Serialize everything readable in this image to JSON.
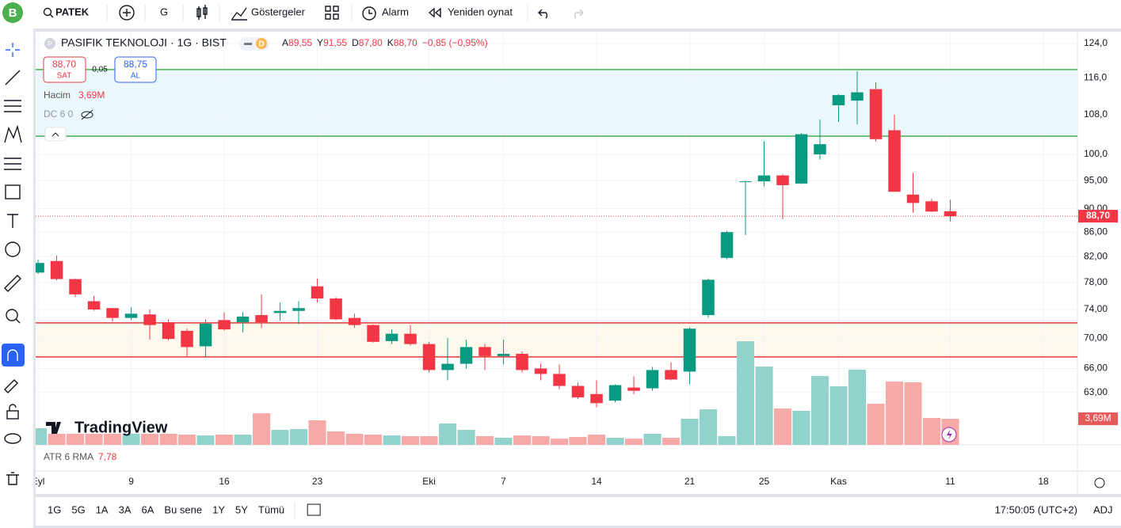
{
  "toolbar": {
    "avatar": "B",
    "symbol": "PATEK",
    "interval": "G",
    "indicators": "Göstergeler",
    "alarm": "Alarm",
    "replay": "Yeniden oynat"
  },
  "legend": {
    "logo": "P",
    "title": "PASIFIK TEKNOLOJI · 1G · BIST",
    "badge": "D",
    "ohlc": [
      {
        "key": "A",
        "value": "89,55"
      },
      {
        "key": "Y",
        "value": "91,55"
      },
      {
        "key": "D",
        "value": "87,80"
      },
      {
        "key": "K",
        "value": "88,70"
      }
    ],
    "change": "−0,85 (−0,95%)"
  },
  "trade": {
    "sell_price": "88,70",
    "sell": "SAT",
    "spread": "0,05",
    "buy_price": "88,75",
    "buy": "AL"
  },
  "indicators": [
    {
      "name": "Hacim",
      "value": "3,69M"
    },
    {
      "name": "DC 6 0"
    }
  ],
  "atr": {
    "name": "ATR 6 RMA",
    "value": "7,78"
  },
  "watermark": "TradingView",
  "ranges": [
    "1G",
    "5G",
    "1A",
    "3A",
    "6A",
    "Bu sene",
    "1Y",
    "5Y",
    "Tümü"
  ],
  "clock": "17:50:05 (UTC+2)",
  "adj": "ADJ",
  "chart_data": {
    "type": "candlestick",
    "log_scale": true,
    "grid": true,
    "xlim": [
      -0.13,
      55.83
    ],
    "ylim": [
      56.9,
      126.9
    ],
    "yticks": [
      {
        "value": 124,
        "label": "124,0"
      },
      {
        "value": 116,
        "label": "116,0"
      },
      {
        "value": 108,
        "label": "108,0"
      },
      {
        "value": 100,
        "label": "100,0"
      },
      {
        "value": 95,
        "label": "95,00"
      },
      {
        "value": 90,
        "label": "90,00"
      },
      {
        "value": 86,
        "label": "86,00"
      },
      {
        "value": 82,
        "label": "82,00"
      },
      {
        "value": 78,
        "label": "78,00"
      },
      {
        "value": 74,
        "label": "74,00"
      },
      {
        "value": 70,
        "label": "70,00"
      },
      {
        "value": 66,
        "label": "66,00"
      },
      {
        "value": 63,
        "label": "63,00"
      }
    ],
    "xticks": [
      {
        "value": 0,
        "label": "Eyl"
      },
      {
        "value": 5,
        "label": "9"
      },
      {
        "value": 10,
        "label": "16"
      },
      {
        "value": 15,
        "label": "23"
      },
      {
        "value": 21,
        "label": "Eki"
      },
      {
        "value": 25,
        "label": "7"
      },
      {
        "value": 30,
        "label": "14"
      },
      {
        "value": 35,
        "label": "21"
      },
      {
        "value": 39,
        "label": "25"
      },
      {
        "value": 43,
        "label": "Kas"
      },
      {
        "value": 49,
        "label": "11"
      },
      {
        "value": 54,
        "label": "18"
      }
    ],
    "series": {
      "up_color": "#089981",
      "down_color": "#f23645",
      "open": [
        79.5,
        81.3,
        78.5,
        75.2,
        74.2,
        72.8,
        73.3,
        72.2,
        71.0,
        68.9,
        72.5,
        72.2,
        73.2,
        73.5,
        73.8,
        77.4,
        75.6,
        72.8,
        71.8,
        69.6,
        70.6,
        69.2,
        65.8,
        66.6,
        68.8,
        67.6,
        67.9,
        66.0,
        65.3,
        63.8,
        62.8,
        62.0,
        63.6,
        63.5,
        65.8,
        65.6,
        73.2,
        81.8,
        94.8,
        94.9,
        96.0,
        94.5,
        100.0,
        110.0,
        111.0,
        113.5,
        104.8,
        92.5,
        91.3,
        89.55
      ],
      "high": [
        81.5,
        82.2,
        78.6,
        76.0,
        74.2,
        74.3,
        74.0,
        72.6,
        71.3,
        72.6,
        73.6,
        73.6,
        76.2,
        75.0,
        75.2,
        78.6,
        75.8,
        73.4,
        71.9,
        71.2,
        71.8,
        69.5,
        70.0,
        69.8,
        69.2,
        69.8,
        68.2,
        66.6,
        66.5,
        64.2,
        64.5,
        64.0,
        65.0,
        66.2,
        66.8,
        71.5,
        78.6,
        86.2,
        95.0,
        102.5,
        96.2,
        104.2,
        107.0,
        112.4,
        117.5,
        115.0,
        108.0,
        96.5,
        91.7,
        91.55
      ],
      "low": [
        79.3,
        78.3,
        75.8,
        73.8,
        72.3,
        72.5,
        69.8,
        69.7,
        67.5,
        67.5,
        71.0,
        70.8,
        71.4,
        72.4,
        71.9,
        75.0,
        72.5,
        71.4,
        69.4,
        69.2,
        69.0,
        65.5,
        64.5,
        66.0,
        65.8,
        66.5,
        65.5,
        64.5,
        63.4,
        62.2,
        61.2,
        61.8,
        62.8,
        63.2,
        64.5,
        64.0,
        72.8,
        81.6,
        85.5,
        94.0,
        88.2,
        94.4,
        99.0,
        106.5,
        106.0,
        102.5,
        93.0,
        89.3,
        89.4,
        87.8
      ],
      "close": [
        81.0,
        78.5,
        76.2,
        74.0,
        72.8,
        73.4,
        71.8,
        69.9,
        68.8,
        72.0,
        71.2,
        73.0,
        72.2,
        73.8,
        74.2,
        75.6,
        72.6,
        71.8,
        69.5,
        70.6,
        69.2,
        65.8,
        66.6,
        68.8,
        67.6,
        67.9,
        65.8,
        65.3,
        63.8,
        62.4,
        61.7,
        63.9,
        63.2,
        65.8,
        64.6,
        71.3,
        78.4,
        86.0,
        94.9,
        96.0,
        94.2,
        104.0,
        102.0,
        112.2,
        112.8,
        103.0,
        93.0,
        91.0,
        89.5,
        88.7
      ]
    },
    "volume": {
      "up_color": "#92d2cc",
      "down_color": "#f7a9a7",
      "ylim": [
        0,
        58.4
      ],
      "values": [
        2.35,
        1.57,
        1.57,
        1.57,
        1.57,
        1.57,
        1.57,
        1.57,
        1.45,
        1.34,
        1.45,
        1.45,
        4.47,
        2.12,
        2.24,
        3.47,
        1.9,
        1.57,
        1.45,
        1.34,
        1.23,
        1.23,
        3.02,
        2.12,
        1.23,
        1.01,
        1.34,
        1.23,
        0.89,
        1.12,
        1.45,
        1.01,
        0.89,
        1.57,
        1.01,
        3.69,
        5.03,
        1.23,
        14.65,
        11.07,
        5.14,
        4.81,
        9.73,
        8.28,
        10.63,
        5.82,
        8.95,
        8.84,
        3.8,
        3.69
      ]
    },
    "zones": [
      {
        "from": 103.6,
        "to": 117.9,
        "line_color": "#4caf50",
        "fill": "#eaf8fb"
      },
      {
        "from": 67.5,
        "to": 72.1,
        "line_color": "#e53935",
        "fill": "#fff8ec"
      }
    ],
    "last_price": {
      "value": 88.7,
      "label": "88,70"
    },
    "volume_label": {
      "value": 3.69,
      "label": "3,69M"
    }
  }
}
